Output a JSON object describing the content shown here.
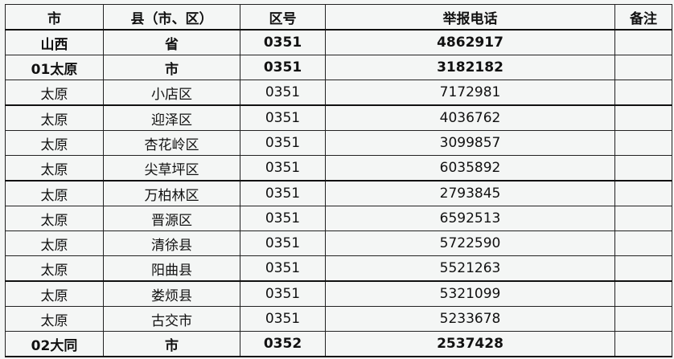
{
  "table": {
    "headers": [
      "市",
      "县（市、区）",
      "区号",
      "举报电话",
      "备注"
    ],
    "rows": [
      {
        "city": "山西",
        "county": "省",
        "code": "0351",
        "phone": "4862917",
        "note": "",
        "bold": true
      },
      {
        "city": "01太原",
        "county": "市",
        "code": "0351",
        "phone": "3182182",
        "note": "",
        "bold": true
      },
      {
        "city": "太原",
        "county": "小店区",
        "code": "0351",
        "phone": "7172981",
        "note": ""
      },
      {
        "city": "太原",
        "county": "迎泽区",
        "code": "0351",
        "phone": "4036762",
        "note": ""
      },
      {
        "city": "太原",
        "county": "杏花岭区",
        "code": "0351",
        "phone": "3099857",
        "note": ""
      },
      {
        "city": "太原",
        "county": "尖草坪区",
        "code": "0351",
        "phone": "6035892",
        "note": ""
      },
      {
        "city": "太原",
        "county": "万柏林区",
        "code": "0351",
        "phone": "2793845",
        "note": ""
      },
      {
        "city": "太原",
        "county": "晋源区",
        "code": "0351",
        "phone": "6592513",
        "note": ""
      },
      {
        "city": "太原",
        "county": "清徐县",
        "code": "0351",
        "phone": "5722590",
        "note": ""
      },
      {
        "city": "太原",
        "county": "阳曲县",
        "code": "0351",
        "phone": "5521263",
        "note": ""
      },
      {
        "city": "太原",
        "county": "娄烦县",
        "code": "0351",
        "phone": "5321099",
        "note": ""
      },
      {
        "city": "太原",
        "county": "古交市",
        "code": "0351",
        "phone": "5233678",
        "note": ""
      },
      {
        "city": "02大同",
        "county": "市",
        "code": "0352",
        "phone": "2537428",
        "note": "",
        "bold": true
      }
    ]
  }
}
